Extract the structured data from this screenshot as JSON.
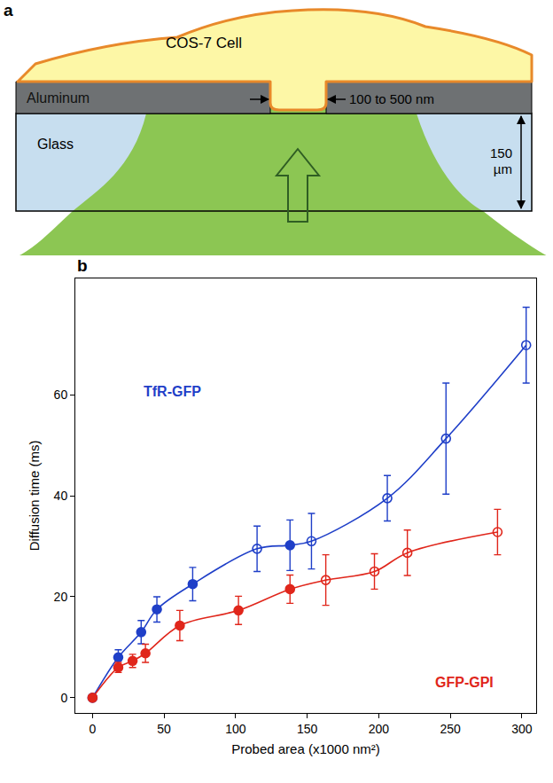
{
  "diagram": {
    "label": "a",
    "cell": "COS-7 Cell",
    "top_layer": "Aluminum",
    "bottom_layer": "Glass",
    "aperture": "100 to 500 nm",
    "thickness": "150 µm"
  },
  "chart_data": {
    "type": "scatter",
    "xlabel": "Probed area (x1000 nm²)",
    "ylabel": "Diffusion time (ms)",
    "annotations": [
      {
        "text": "b"
      }
    ],
    "xlim": [
      -12,
      310
    ],
    "xticks": [
      0,
      50,
      100,
      150,
      200,
      250,
      300
    ],
    "ylim": [
      -3,
      83
    ],
    "yticks": [
      0,
      20,
      40,
      60
    ],
    "grid": false,
    "series": [
      {
        "name": "TfR-GFP",
        "color": "#1f3fc8",
        "line_style": "spline",
        "x": [
          0,
          18,
          34,
          45,
          70,
          115,
          138,
          153,
          206,
          247,
          303
        ],
        "values": [
          0,
          8,
          13,
          17.5,
          22.5,
          29.5,
          30.2,
          31,
          39.5,
          51.3,
          69.8
        ],
        "error": [
          0,
          1.5,
          2.3,
          2.5,
          3.3,
          4.5,
          5,
          5.5,
          4.5,
          11,
          7.5
        ],
        "markers": [
          "circle",
          "circle",
          "circle",
          "circle",
          "circle",
          "circle-open",
          "circle",
          "circle-open",
          "circle-open",
          "circle-open",
          "circle-open"
        ]
      },
      {
        "name": "GFP-GPI",
        "color": "#e0261b",
        "line_style": "spline",
        "x": [
          0,
          18,
          28,
          37,
          61,
          102,
          138,
          163,
          197,
          220,
          283
        ],
        "values": [
          0,
          6,
          7.3,
          8.8,
          14.3,
          17.3,
          21.5,
          23.3,
          25,
          28.7,
          32.8
        ],
        "error": [
          0,
          1,
          1.3,
          1.8,
          3,
          2.8,
          2.8,
          5,
          3.5,
          4.5,
          4.5
        ],
        "markers": [
          "circle",
          "circle",
          "circle",
          "circle",
          "circle",
          "circle",
          "circle",
          "circle-open",
          "circle-open",
          "circle-open",
          "circle-open"
        ]
      }
    ]
  }
}
